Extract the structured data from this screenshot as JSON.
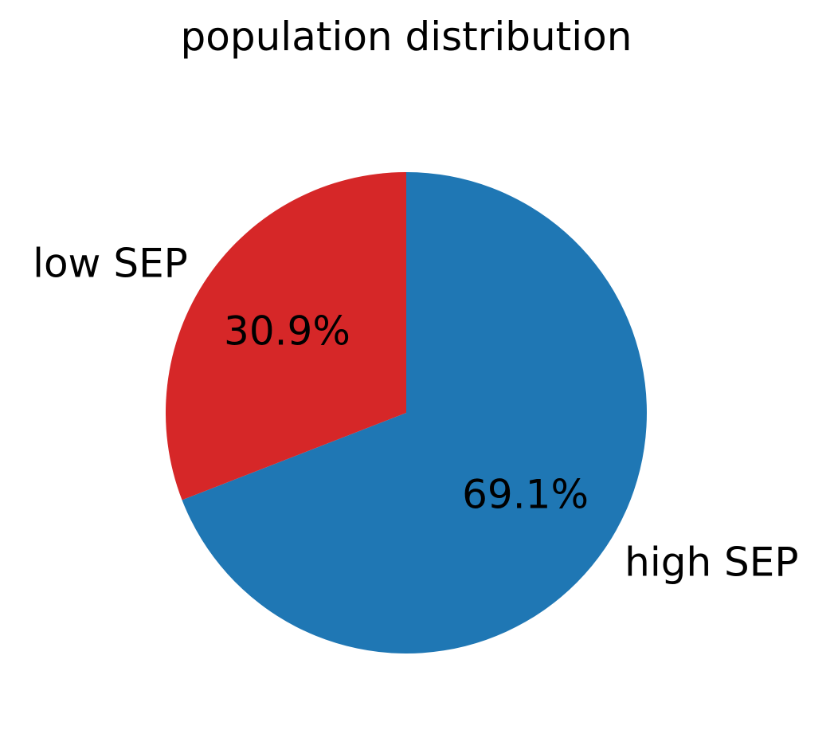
{
  "chart_data": {
    "type": "pie",
    "title": "population distribution",
    "slices": [
      {
        "label": "high SEP",
        "value": 69.1,
        "pct_label": "69.1%",
        "color": "#1f77b4"
      },
      {
        "label": "low SEP",
        "value": 30.9,
        "pct_label": "30.9%",
        "color": "#d62728"
      }
    ],
    "start_angle_deg": 90,
    "direction": "clockwise",
    "legend": "none"
  }
}
